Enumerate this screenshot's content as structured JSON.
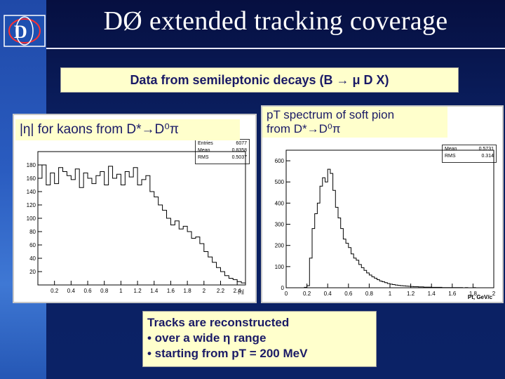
{
  "slide": {
    "title": "DØ extended tracking coverage",
    "subtitle": "Data from semileptonic decays (B → μ D X)",
    "logo": {
      "text": "D",
      "icon": "do-experiment-logo"
    }
  },
  "left_panel": {
    "label": "|η| for kaons from D*→D⁰π",
    "stats": [
      {
        "name": "Entries",
        "value": "6077"
      },
      {
        "name": "Mean",
        "value": "0.8358"
      },
      {
        "name": "RMS",
        "value": "0.5037"
      }
    ],
    "x_axis_label": "|η|"
  },
  "right_panel": {
    "label_line1": "pT spectrum of soft pion",
    "label_line2": "from D*→D⁰π",
    "stats": [
      {
        "name": "Mean",
        "value": "0.5731"
      },
      {
        "name": "RMS",
        "value": "0.314"
      }
    ],
    "x_axis_label": "Pt, GeV/c"
  },
  "info": {
    "line1": "Tracks are reconstructed",
    "line2": "• over a wide η range",
    "line3": "• starting from pT = 200 MeV"
  },
  "chart_data": [
    {
      "type": "bar",
      "xlabel": "|η|",
      "ylabel": "",
      "xlim": [
        0,
        2.5
      ],
      "ylim": [
        0,
        200
      ],
      "xticks": [
        "0.2",
        "0.4",
        "0.6",
        "0.8",
        "1",
        "1.2",
        "1.4",
        "1.6",
        "1.8",
        "2",
        "2.2",
        "2.4"
      ],
      "yticks": [
        "20",
        "40",
        "60",
        "80",
        "100",
        "120",
        "140",
        "160",
        "180"
      ],
      "bin_width": 0.05,
      "values": [
        160,
        180,
        150,
        168,
        152,
        176,
        170,
        164,
        158,
        174,
        146,
        168,
        160,
        152,
        164,
        170,
        150,
        178,
        160,
        166,
        150,
        170,
        162,
        176,
        150,
        158,
        164,
        140,
        132,
        120,
        112,
        100,
        90,
        96,
        84,
        88,
        80,
        70,
        72,
        62,
        50,
        42,
        34,
        26,
        20,
        14,
        10,
        8,
        5,
        3
      ]
    },
    {
      "type": "bar",
      "xlabel": "Pt, GeV/c",
      "ylabel": "",
      "xlim": [
        0,
        2
      ],
      "ylim": [
        0,
        650
      ],
      "xticks": [
        "0",
        "0.2",
        "0.4",
        "0.6",
        "0.8",
        "1",
        "1.2",
        "1.4",
        "1.6",
        "1.8",
        "2"
      ],
      "yticks": [
        "0",
        "100",
        "200",
        "300",
        "400",
        "500",
        "600"
      ],
      "bin_width": 0.025,
      "values": [
        0,
        0,
        0,
        0,
        0,
        0,
        0,
        2,
        10,
        140,
        280,
        350,
        400,
        480,
        520,
        500,
        560,
        540,
        460,
        380,
        330,
        280,
        230,
        210,
        190,
        160,
        140,
        130,
        110,
        95,
        82,
        70,
        60,
        52,
        45,
        38,
        32,
        28,
        24,
        20,
        17,
        15,
        13,
        11,
        10,
        9,
        8,
        7,
        6,
        5,
        5,
        4,
        4,
        3,
        3,
        3,
        2,
        2,
        2,
        2,
        1,
        1,
        1,
        1,
        1,
        1,
        1,
        1,
        0,
        1,
        0,
        0,
        1,
        0,
        0,
        0,
        0,
        0,
        0,
        0
      ]
    }
  ]
}
